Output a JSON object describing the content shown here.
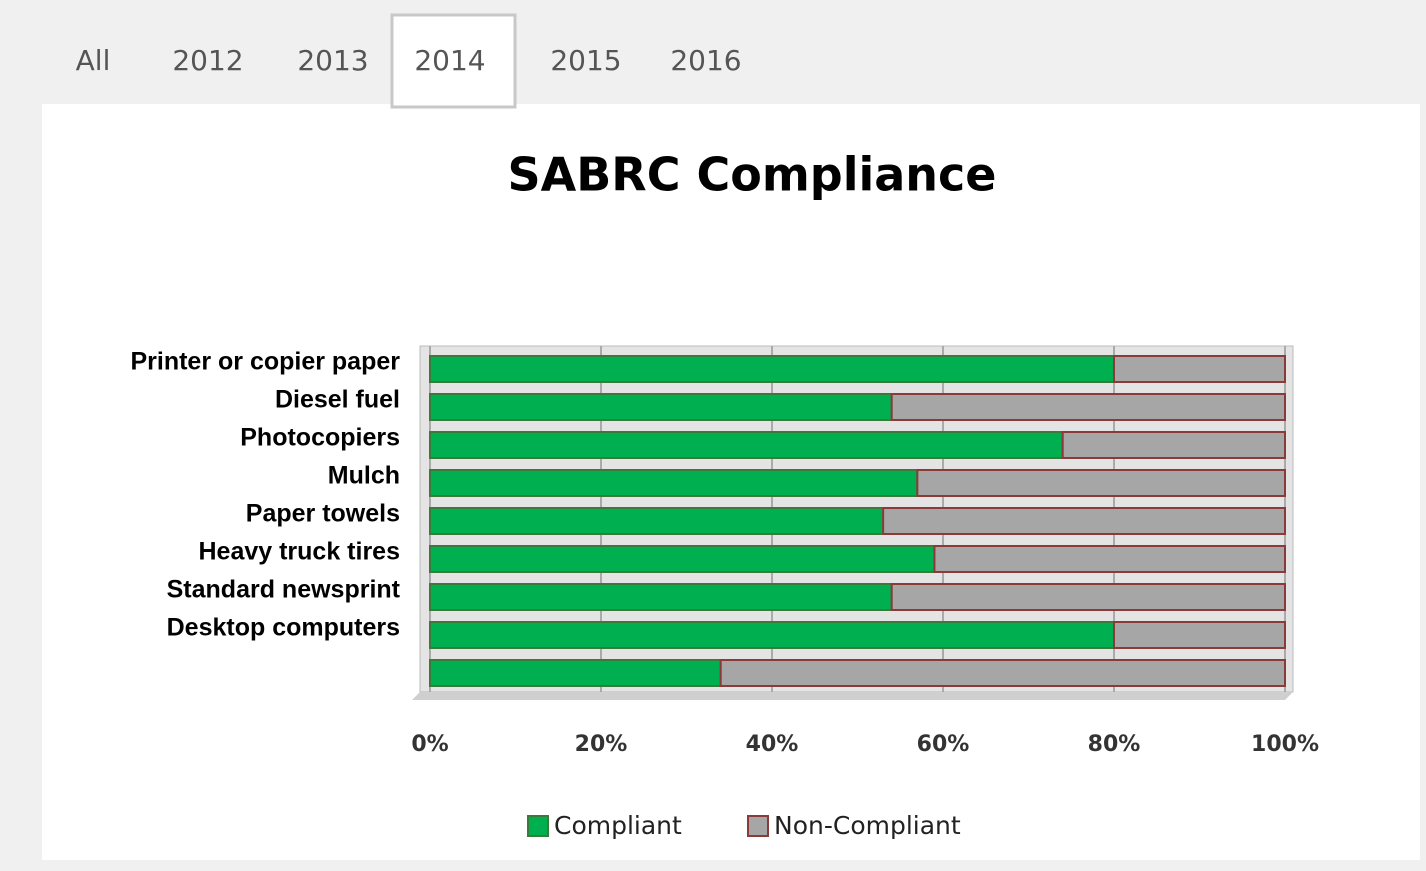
{
  "tabs": {
    "items": [
      "All",
      "2012",
      "2013",
      "2014",
      "2015",
      "2016"
    ],
    "active": "2014"
  },
  "chart_data": {
    "type": "stacked-bar-horizontal",
    "title": "SABRC Compliance",
    "categories": [
      "Printer or copier paper",
      "Diesel fuel",
      "Photocopiers",
      "Mulch",
      "Paper towels",
      "Heavy truck tires",
      "Standard newsprint",
      "Desktop computers",
      null
    ],
    "series": [
      {
        "name": "Compliant",
        "color": "#00b050",
        "values": [
          80,
          54,
          74,
          57,
          53,
          59,
          54,
          80,
          34
        ]
      },
      {
        "name": "Non-Compliant",
        "color": "#a6a6a6",
        "values": [
          20,
          46,
          26,
          43,
          47,
          41,
          46,
          20,
          66
        ]
      }
    ],
    "xlim": [
      0,
      100
    ],
    "xticks": [
      {
        "value": 0,
        "label": "0%"
      },
      {
        "value": 20,
        "label": "20%"
      },
      {
        "value": 40,
        "label": "40%"
      },
      {
        "value": 60,
        "label": "60%"
      },
      {
        "value": 80,
        "label": "80%"
      },
      {
        "value": 100,
        "label": "100%"
      }
    ],
    "grid": true,
    "legend": "bottom"
  }
}
